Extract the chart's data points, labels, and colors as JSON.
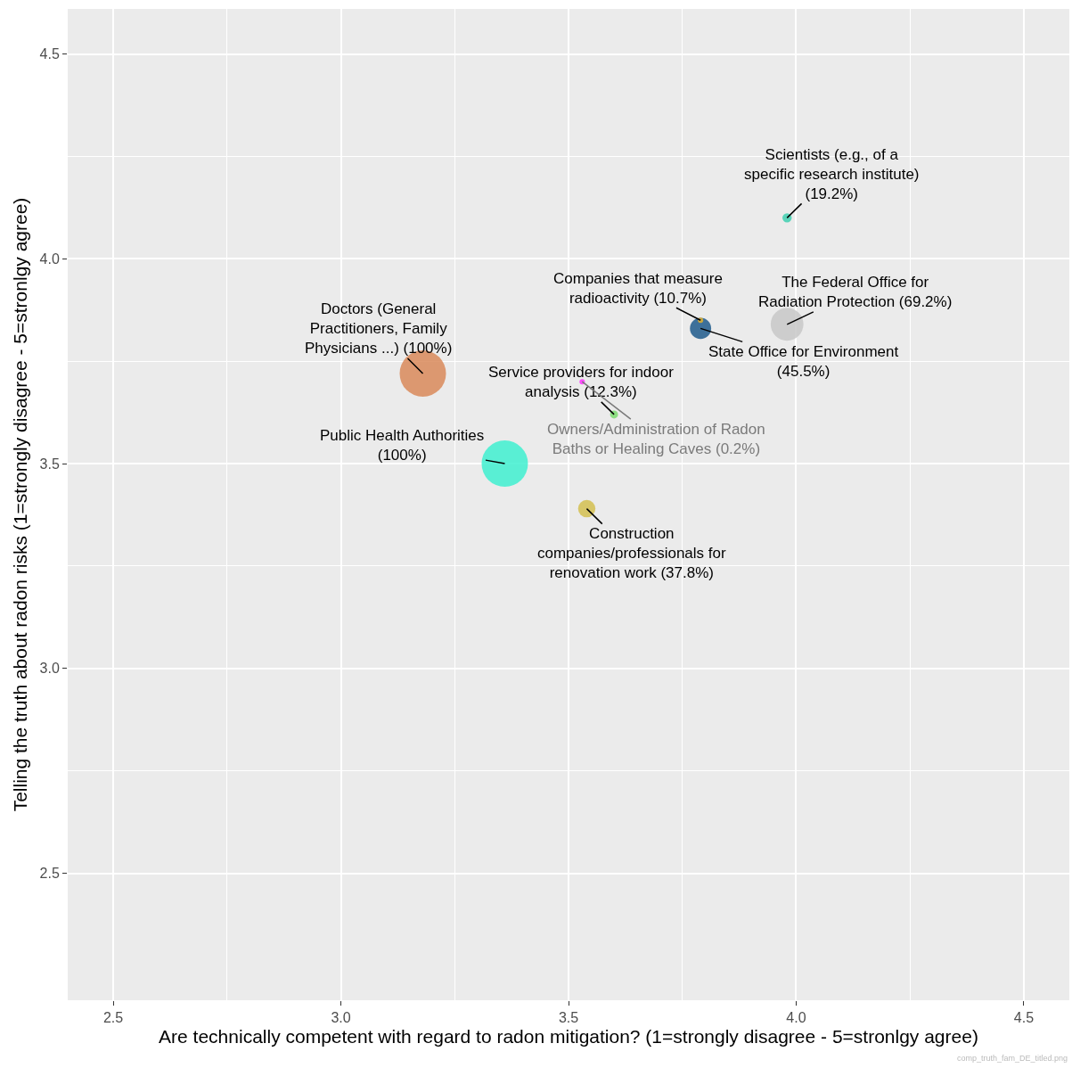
{
  "chart_data": {
    "type": "bubble",
    "xlabel": "Are technically competent with regard to radon mitigation? (1=strongly disagree - 5=stronlgy agree)",
    "ylabel": "Telling the truth about radon risks (1=strongly disagree - 5=stronlgy agree)",
    "x": [
      3.98,
      3.98,
      3.79,
      3.79,
      3.18,
      3.36,
      3.6,
      3.53,
      3.54
    ],
    "values": [
      4.1,
      3.84,
      3.83,
      3.85,
      3.72,
      3.5,
      3.62,
      3.7,
      3.39
    ],
    "sizes": [
      0.04,
      0.5,
      0.21,
      0.01,
      1,
      1,
      0.03,
      0.007,
      0.14
    ],
    "colors": [
      "#40d0b0",
      "#c8c8c8",
      "#1f5a8c",
      "#e0b030",
      "#d9895a",
      "#40f0d0",
      "#7ddc70",
      "#ff33ff",
      "#d4c050"
    ],
    "annotations": [
      {
        "text": "Scientists (e.g., of a\nspecific research institute)\n(19.2%)",
        "x": 3.98,
        "y": 4.1
      },
      {
        "text": "The Federal Office for\nRadiation Protection (69.2%)",
        "x": 3.98,
        "y": 3.84
      },
      {
        "text": "State Office for Environment\n(45.5%)",
        "x": 3.79,
        "y": 3.83
      },
      {
        "text": "Companies that measure\nradioactivity (10.7%)",
        "x": 3.79,
        "y": 3.85
      },
      {
        "text": "Doctors (General\nPractitioners, Family\nPhysicians ...) (100%)",
        "x": 3.18,
        "y": 3.72
      },
      {
        "text": "Public Health Authorities\n(100%)",
        "x": 3.36,
        "y": 3.5
      },
      {
        "text": "Service providers for indoor\nanalysis (12.3%)",
        "x": 3.6,
        "y": 3.62
      },
      {
        "text": "Owners/Administration of Radon\nBaths or Healing Caves (0.2%)",
        "x": 3.53,
        "y": 3.7
      },
      {
        "text": "Construction\ncompanies/professionals for\nrenovation work (37.8%)",
        "x": 3.54,
        "y": 3.39
      },
      "comp_truth_fam_DE_titled.png"
    ],
    "xlim": [
      2.4,
      4.6
    ],
    "ylim": [
      2.19,
      4.61
    ],
    "xticks": [
      2.5,
      {
        "value": 3,
        "label": "3.0"
      },
      3.5,
      {
        "value": 4,
        "label": "4.0"
      },
      4.5
    ],
    "yticks": [
      2.5,
      {
        "value": 3,
        "label": "3.0"
      },
      3.5,
      {
        "value": 4,
        "label": "4.0"
      },
      4.5
    ],
    "grid": true
  }
}
